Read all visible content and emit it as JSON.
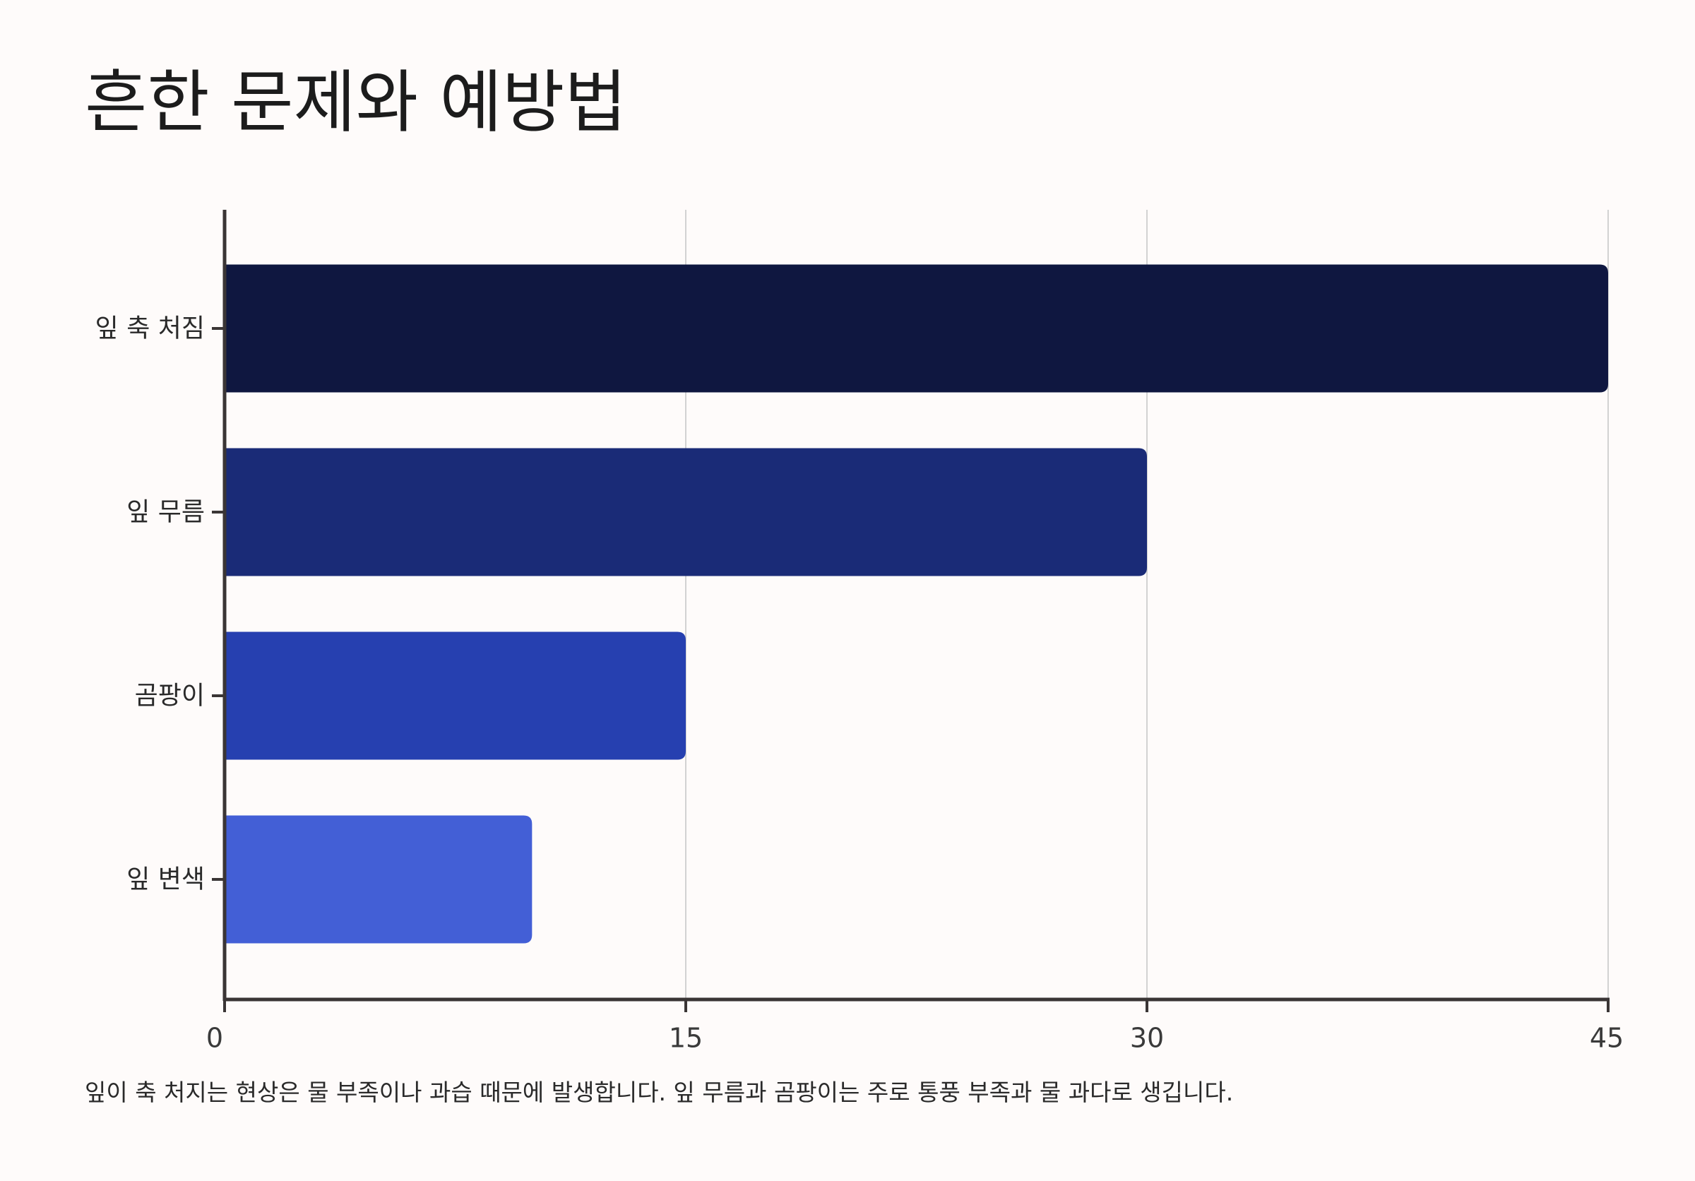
{
  "title": "흔한 문제와 예방법",
  "caption": "잎이 축 처지는 현상은 물 부족이나 과습 때문에 발생합니다. 잎 무름과 곰팡이는 주로 통풍 부족과 물 과다로 생깁니다.",
  "chart_data": {
    "type": "bar",
    "orientation": "horizontal",
    "categories": [
      "잎 축 처짐",
      "잎 무름",
      "곰팡이",
      "잎 변색"
    ],
    "values": [
      45,
      30,
      15,
      10
    ],
    "colors": [
      "#0F1740",
      "#1A2B77",
      "#2640B0",
      "#435FD6"
    ],
    "xlim": [
      0,
      45
    ],
    "x_ticks": [
      0,
      15,
      30,
      45
    ],
    "x_tick_labels": [
      "0",
      "15",
      "30",
      "45"
    ],
    "grid": "vertical",
    "legend": "none"
  }
}
